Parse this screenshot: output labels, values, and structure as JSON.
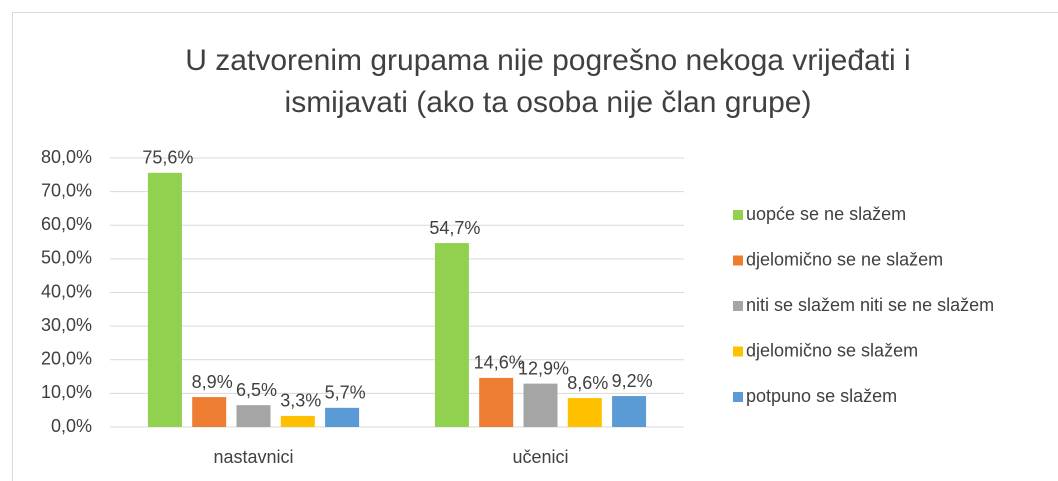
{
  "chart_data": {
    "type": "bar",
    "title": [
      "U zatvorenim grupama nije pogrešno nekoga vrijeđati i",
      "ismijavati (ako ta osoba nije član grupe)"
    ],
    "categories": [
      "nastavnici",
      "učenici"
    ],
    "series": [
      {
        "name": "uopće se ne slažem",
        "color": "#92d050",
        "values": [
          75.6,
          54.7
        ],
        "value_labels": [
          "75,6%",
          "54,7%"
        ]
      },
      {
        "name": "djelomično se ne slažem",
        "color": "#ed7d31",
        "values": [
          8.9,
          14.6
        ],
        "value_labels": [
          "8,9%",
          "14,6%"
        ]
      },
      {
        "name": "niti se slažem niti se ne slažem",
        "color": "#a5a5a5",
        "values": [
          6.5,
          12.9
        ],
        "value_labels": [
          "6,5%",
          "12,9%"
        ]
      },
      {
        "name": "djelomično se slažem",
        "color": "#ffc000",
        "values": [
          3.3,
          8.6
        ],
        "value_labels": [
          "3,3%",
          "8,6%"
        ]
      },
      {
        "name": "potpuno se slažem",
        "color": "#5b9bd5",
        "values": [
          5.7,
          9.2
        ],
        "value_labels": [
          "5,7%",
          "9,2%"
        ]
      }
    ],
    "ylim": [
      0,
      80
    ],
    "yticks": [
      {
        "value": 0,
        "label": "0,0%"
      },
      {
        "value": 10,
        "label": "10,0%"
      },
      {
        "value": 20,
        "label": "20,0%"
      },
      {
        "value": 30,
        "label": "30,0%"
      },
      {
        "value": 40,
        "label": "40,0%"
      },
      {
        "value": 50,
        "label": "50,0%"
      },
      {
        "value": 60,
        "label": "60,0%"
      },
      {
        "value": 70,
        "label": "70,0%"
      },
      {
        "value": 80,
        "label": "80,0%"
      }
    ],
    "grid": true,
    "legend": "right"
  }
}
